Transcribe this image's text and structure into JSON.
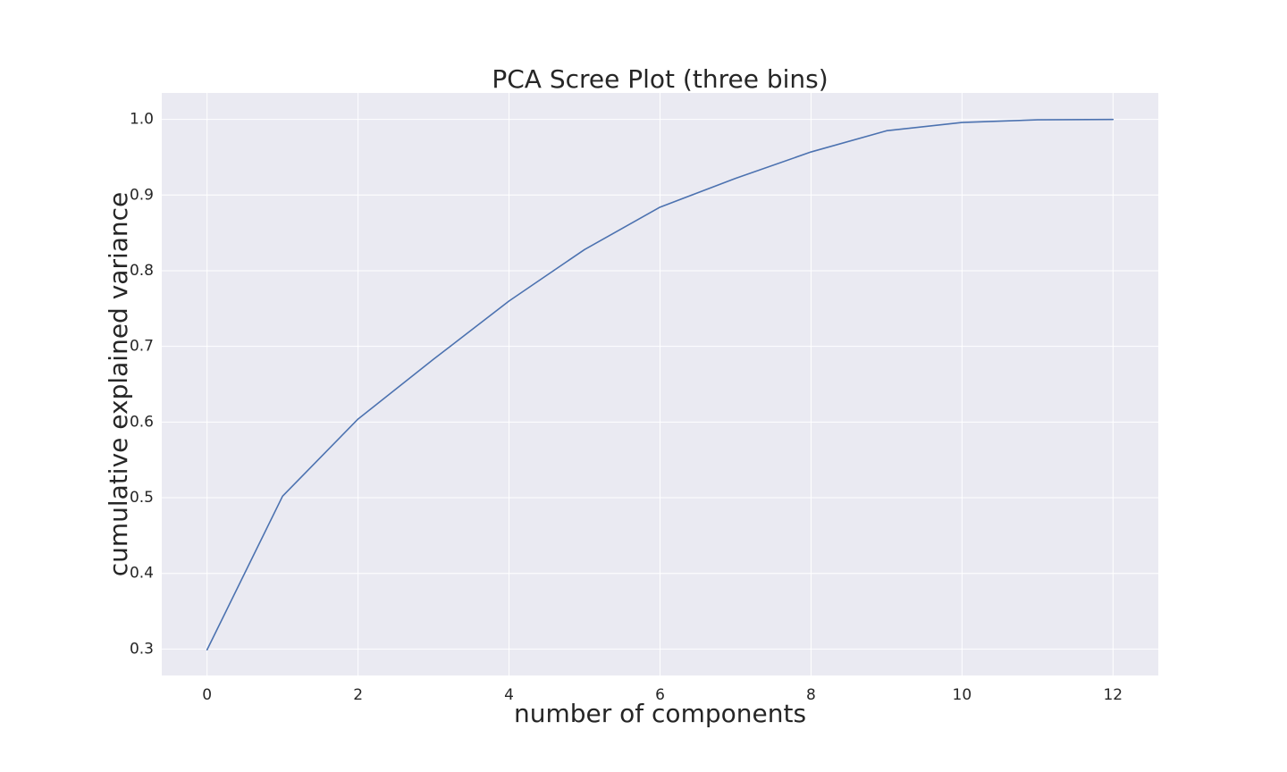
{
  "chart_data": {
    "type": "line",
    "title": "PCA Scree Plot (three bins)",
    "xlabel": "number of components",
    "ylabel": "cumulative explained variance",
    "xlim": [
      -0.6,
      12.6
    ],
    "ylim": [
      0.265,
      1.035
    ],
    "xticks": [
      0,
      2,
      4,
      6,
      8,
      10,
      12
    ],
    "xtick_labels": [
      "0",
      "2",
      "4",
      "6",
      "8",
      "10",
      "12"
    ],
    "yticks": [
      0.3,
      0.4,
      0.5,
      0.6,
      0.7,
      0.8,
      0.9,
      1.0
    ],
    "ytick_labels": [
      "0.3",
      "0.4",
      "0.5",
      "0.6",
      "0.7",
      "0.8",
      "0.9",
      "1.0"
    ],
    "grid": true,
    "series": [
      {
        "x": [
          0,
          1,
          2,
          3,
          4,
          5,
          6,
          7,
          8,
          9,
          10,
          11,
          12
        ],
        "values": [
          0.299,
          0.502,
          0.604,
          0.683,
          0.76,
          0.828,
          0.884,
          0.922,
          0.957,
          0.985,
          0.996,
          0.9995,
          1.0
        ],
        "color": "#4c72b0"
      }
    ],
    "colors": {
      "plot_background": "#eaeaf2",
      "grid": "#ffffff",
      "text": "#262626"
    }
  }
}
